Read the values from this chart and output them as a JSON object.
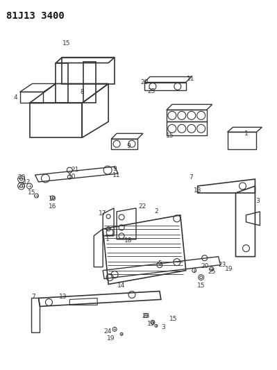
{
  "title": "81J13 3400",
  "bg_color": "#ffffff",
  "line_color": "#333333",
  "fig_width": 3.99,
  "fig_height": 5.33,
  "dpi": 100
}
